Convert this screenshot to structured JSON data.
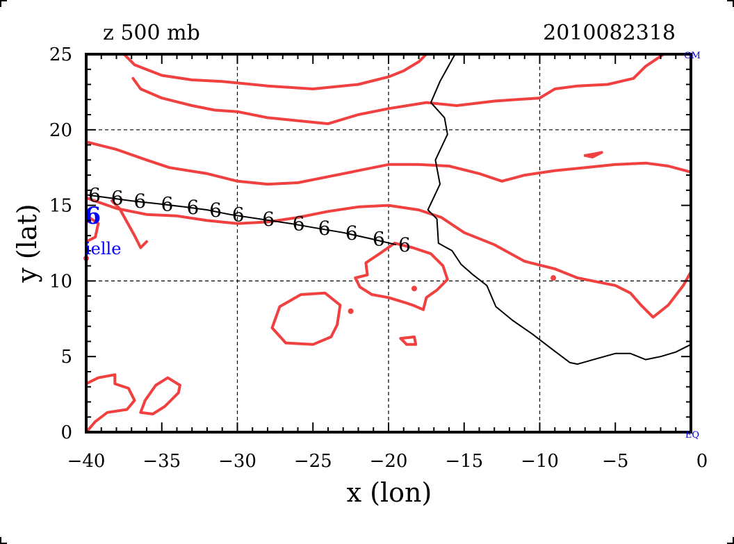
{
  "title_left": "z 500 mb",
  "title_right": "2010082318",
  "corner_label_top": "GM",
  "corner_label_bottom": "EQ",
  "storm_label": "ielle",
  "storm_symbol": "6",
  "chart_data": {
    "type": "map-contour",
    "title": "z 500 mb",
    "timestamp": "2010082318",
    "xlabel": "x (lon)",
    "ylabel": "y (lat)",
    "xlim": [
      -40,
      0
    ],
    "ylim": [
      0,
      25
    ],
    "xticks": [
      -40,
      -35,
      -30,
      -25,
      -20,
      -15,
      -10,
      -5,
      0
    ],
    "yticks": [
      0,
      5,
      10,
      15,
      20,
      25
    ],
    "grid_x": [
      -30,
      -20,
      -10
    ],
    "grid_y": [
      10,
      20
    ],
    "colors": {
      "contour": "#f04040",
      "coast": "#000000",
      "track": "#000000",
      "storm": "#0000ff",
      "text": "#000000"
    },
    "contours": [
      [
        [
          -37.5,
          25
        ],
        [
          -36.8,
          24.3
        ],
        [
          -35,
          23.6
        ],
        [
          -33,
          23.3
        ],
        [
          -31,
          23.2
        ],
        [
          -28,
          22.9
        ],
        [
          -25,
          22.7
        ],
        [
          -22,
          23
        ],
        [
          -20,
          23.5
        ],
        [
          -19,
          23.9
        ],
        [
          -18,
          24.5
        ],
        [
          -17.5,
          25
        ]
      ],
      [
        [
          -36.9,
          23.4
        ],
        [
          -36.4,
          22.7
        ],
        [
          -35,
          22.1
        ],
        [
          -33,
          21.6
        ],
        [
          -31.5,
          21.3
        ],
        [
          -30,
          21.2
        ],
        [
          -28,
          20.8
        ],
        [
          -26,
          20.6
        ],
        [
          -24,
          20.4
        ],
        [
          -22,
          21
        ],
        [
          -20,
          21.4
        ],
        [
          -17.5,
          21.8
        ],
        [
          -15.5,
          21.6
        ],
        [
          -13,
          21.9
        ],
        [
          -11.5,
          22
        ],
        [
          -10,
          22.1
        ],
        [
          -9,
          22.7
        ],
        [
          -7.5,
          22.9
        ],
        [
          -5.5,
          23
        ],
        [
          -3.8,
          23.4
        ],
        [
          -3,
          24.2
        ],
        [
          -2.1,
          24.8
        ],
        [
          -1.8,
          25
        ]
      ],
      [
        [
          -40,
          19.2
        ],
        [
          -38,
          18.7
        ],
        [
          -36,
          18
        ],
        [
          -34.5,
          17.5
        ],
        [
          -32,
          17.1
        ],
        [
          -30,
          16.6
        ],
        [
          -28,
          16.4
        ],
        [
          -26,
          16.5
        ],
        [
          -24,
          16.9
        ],
        [
          -22,
          17.3
        ],
        [
          -20,
          17.7
        ],
        [
          -18,
          17.7
        ],
        [
          -16,
          17.6
        ],
        [
          -14,
          17.1
        ],
        [
          -12.5,
          16.6
        ],
        [
          -11,
          17
        ],
        [
          -9,
          17.3
        ],
        [
          -7,
          17.5
        ],
        [
          -5,
          17.7
        ],
        [
          -3,
          17.8
        ],
        [
          -1.5,
          17.6
        ],
        [
          0,
          17.2
        ]
      ],
      [
        [
          -40,
          15.5
        ],
        [
          -38,
          14.8
        ],
        [
          -36,
          14.4
        ],
        [
          -34,
          14.3
        ],
        [
          -32,
          14
        ],
        [
          -30,
          13.8
        ],
        [
          -28,
          13.9
        ],
        [
          -26,
          14.2
        ],
        [
          -24,
          14.6
        ],
        [
          -22,
          14.9
        ],
        [
          -20,
          15
        ],
        [
          -18,
          14.7
        ],
        [
          -16.5,
          14.2
        ],
        [
          -15,
          13.2
        ],
        [
          -13,
          12.4
        ],
        [
          -11,
          11.3
        ],
        [
          -9,
          10.8
        ],
        [
          -7.5,
          10.2
        ],
        [
          -5,
          9.7
        ],
        [
          -4,
          9.2
        ],
        [
          -3.3,
          8.4
        ],
        [
          -2.5,
          7.6
        ],
        [
          -1.5,
          8.4
        ],
        [
          -0.5,
          9.7
        ],
        [
          0,
          10.6
        ]
      ],
      [
        [
          -38.3,
          15.3
        ],
        [
          -37.8,
          14.8
        ],
        [
          -37.3,
          13.9
        ],
        [
          -36.8,
          13
        ],
        [
          -36.4,
          12.2
        ],
        [
          -36,
          12.6
        ]
      ],
      [
        [
          -40,
          12.6
        ],
        [
          -39.4,
          12.9
        ],
        [
          -39.2,
          13.8
        ],
        [
          -39.8,
          14.2
        ],
        [
          -40,
          13.8
        ]
      ],
      [
        [
          -22.2,
          10.2
        ],
        [
          -21.4,
          10.4
        ],
        [
          -21.5,
          11.2
        ],
        [
          -20.6,
          11.8
        ],
        [
          -19.6,
          12.5
        ],
        [
          -18.4,
          12.2
        ],
        [
          -17.2,
          11.8
        ],
        [
          -16.4,
          11
        ],
        [
          -16.1,
          10.1
        ],
        [
          -16.8,
          9.4
        ],
        [
          -17.5,
          8.9
        ],
        [
          -17.7,
          8.1
        ],
        [
          -18.4,
          8.4
        ],
        [
          -19,
          8.6
        ],
        [
          -20,
          8.9
        ],
        [
          -21.1,
          9.1
        ],
        [
          -21.9,
          9.6
        ],
        [
          -22.2,
          10.2
        ]
      ],
      [
        [
          -23.2,
          8.4
        ],
        [
          -23.4,
          7.1
        ],
        [
          -23.8,
          6.3
        ],
        [
          -25,
          5.8
        ],
        [
          -26.8,
          5.9
        ],
        [
          -27.7,
          6.9
        ],
        [
          -27.2,
          8.3
        ],
        [
          -25.8,
          9.1
        ],
        [
          -24.2,
          9.2
        ],
        [
          -23.2,
          8.4
        ]
      ],
      [
        [
          -40,
          0
        ],
        [
          -39.4,
          0.7
        ],
        [
          -38.6,
          1.3
        ],
        [
          -37.3,
          1.5
        ],
        [
          -36.8,
          2.1
        ],
        [
          -37.2,
          2.9
        ],
        [
          -38.1,
          3.2
        ],
        [
          -38.1,
          3.8
        ],
        [
          -39.2,
          3.6
        ],
        [
          -40,
          3.2
        ]
      ],
      [
        [
          -33.8,
          3.1
        ],
        [
          -34.6,
          3.6
        ],
        [
          -35.4,
          3.1
        ],
        [
          -36.1,
          2.1
        ],
        [
          -36.4,
          1.3
        ],
        [
          -35.6,
          1.2
        ],
        [
          -34.8,
          1.7
        ],
        [
          -33.9,
          2.6
        ],
        [
          -33.8,
          3.1
        ]
      ],
      [
        [
          -19.2,
          6.2
        ],
        [
          -18.3,
          6.3
        ],
        [
          -18.2,
          5.8
        ],
        [
          -18.8,
          5.8
        ],
        [
          -19.2,
          6.2
        ]
      ],
      [
        [
          -7,
          18.3
        ],
        [
          -6.4,
          18.4
        ],
        [
          -5.9,
          18.5
        ],
        [
          -6.5,
          18.2
        ],
        [
          -7,
          18.3
        ]
      ]
    ],
    "coastline": [
      [
        [
          -15.6,
          25
        ],
        [
          -16.6,
          23.2
        ],
        [
          -17.2,
          21.8
        ],
        [
          -16.3,
          20.8
        ],
        [
          -16.1,
          19.7
        ],
        [
          -16.9,
          18
        ],
        [
          -16.6,
          16.4
        ],
        [
          -17.4,
          14.7
        ],
        [
          -16.8,
          14.1
        ],
        [
          -16.7,
          12.5
        ],
        [
          -15.8,
          12
        ],
        [
          -15.2,
          11.1
        ],
        [
          -14.4,
          10.4
        ],
        [
          -13.5,
          9.7
        ],
        [
          -12.9,
          8.3
        ],
        [
          -11.8,
          7.4
        ],
        [
          -10.5,
          6.5
        ],
        [
          -9.2,
          5.5
        ],
        [
          -8,
          4.6
        ],
        [
          -7.5,
          4.5
        ],
        [
          -6.1,
          4.9
        ],
        [
          -5,
          5.2
        ],
        [
          -4,
          5.2
        ],
        [
          -3,
          4.8
        ],
        [
          -2,
          5
        ],
        [
          -1,
          5.3
        ],
        [
          0,
          5.8
        ]
      ]
    ],
    "track": {
      "x": [
        -40,
        -38.5,
        -37,
        -35.2,
        -33.5,
        -32,
        -30.5,
        -28.5,
        -26.5,
        -24.8,
        -23,
        -21.2,
        -19.5
      ],
      "y": [
        15.7,
        15.5,
        15.3,
        15.1,
        14.9,
        14.7,
        14.4,
        14.1,
        13.8,
        13.5,
        13.2,
        12.8,
        12.4
      ]
    },
    "storm_position": {
      "x": -39.8,
      "y": 14.3
    },
    "storm_dots": [
      {
        "x": -40,
        "y": 11.5
      },
      {
        "x": -18.3,
        "y": 9.5
      },
      {
        "x": -22.5,
        "y": 8
      },
      {
        "x": -9.1,
        "y": 10.2
      }
    ]
  }
}
